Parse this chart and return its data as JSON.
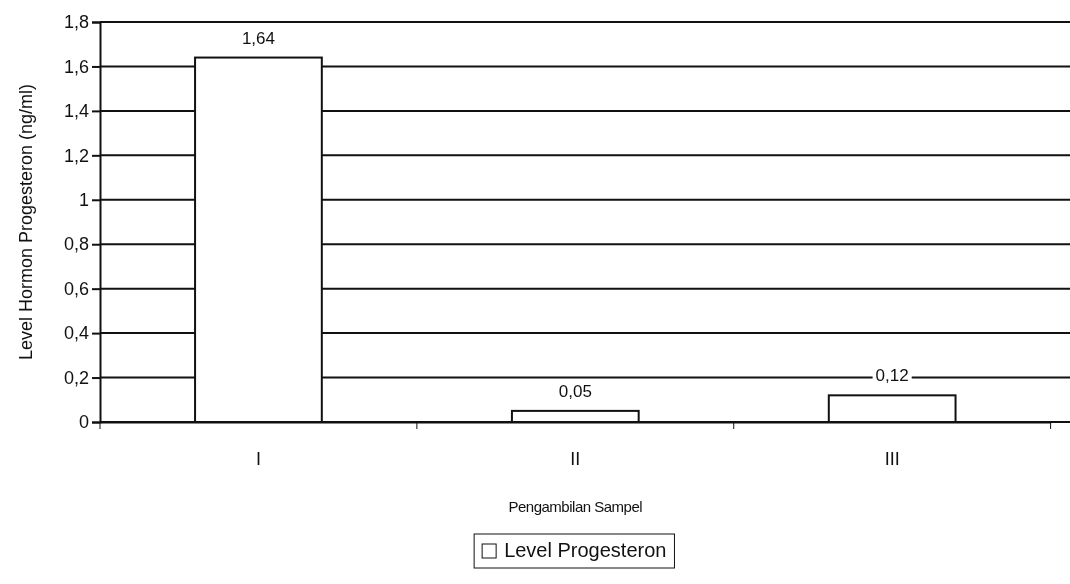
{
  "chart_data": {
    "type": "bar",
    "xlabel": "Pengambilan Sampel",
    "ylabel": "Level Hormon Progesteron (ng/ml)",
    "categories": [
      "I",
      "II",
      "III"
    ],
    "series": [
      {
        "name": "Level Progesteron",
        "color": "#ffffff",
        "values": [
          1.64,
          0.05,
          0.12
        ],
        "value_labels": [
          "1,64",
          "0,05",
          "0,12"
        ]
      }
    ],
    "ylim": [
      0,
      1.8
    ],
    "yticks": [
      0,
      {
        "value": 0.2,
        "label": "0,2"
      },
      {
        "value": 0.4,
        "label": "0,4"
      },
      {
        "value": 0.6,
        "label": "0,6"
      },
      {
        "value": 0.8,
        "label": "0,8"
      },
      1,
      {
        "value": 1.2,
        "label": "1,2"
      },
      {
        "value": 1.4,
        "label": "1,4"
      },
      {
        "value": 1.6,
        "label": "1,6"
      },
      {
        "value": 1.8,
        "label": "1,8"
      }
    ],
    "grid": "y",
    "legend": "bottom"
  }
}
